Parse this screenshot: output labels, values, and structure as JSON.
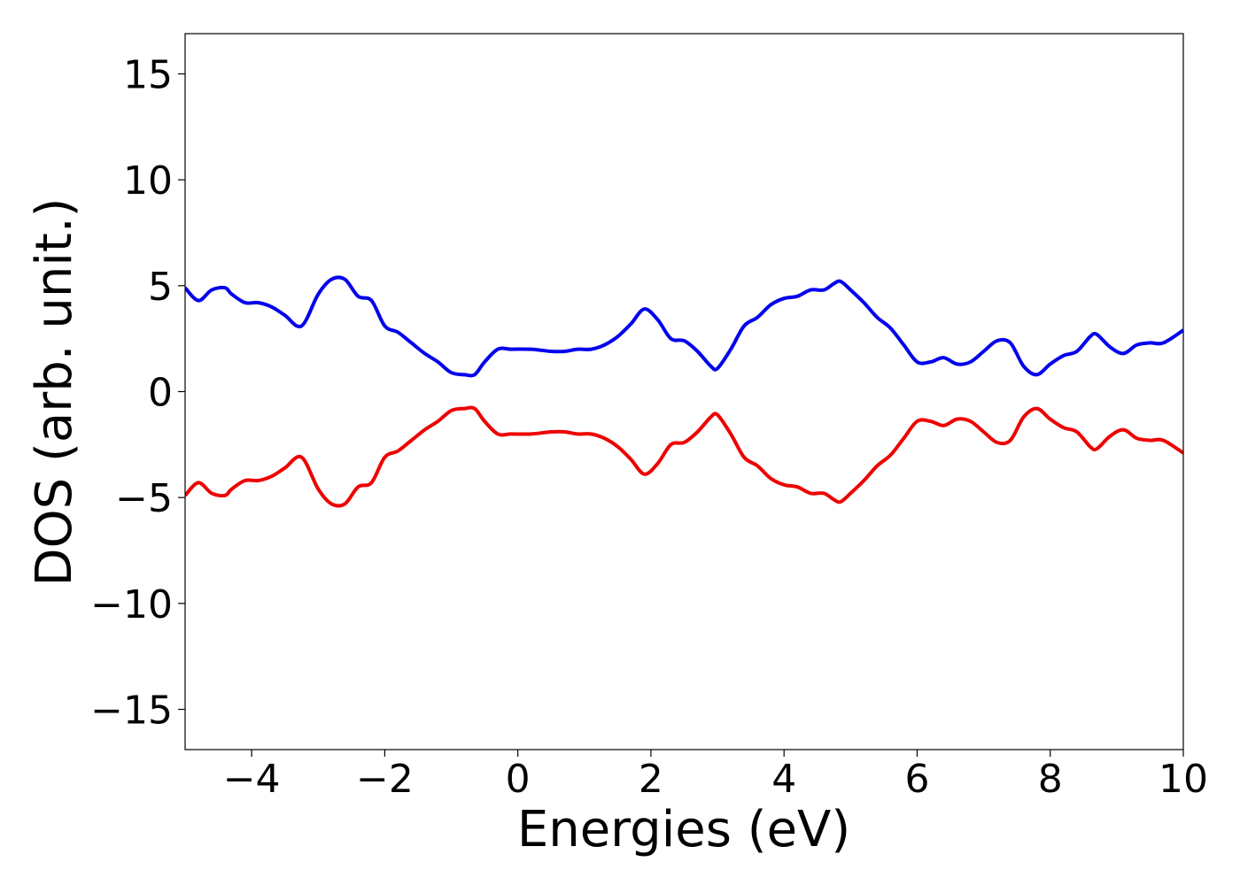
{
  "chart_data": {
    "type": "line",
    "title": "",
    "xlabel": "Energies (eV)",
    "ylabel": "DOS (arb. unit.)",
    "xlim": [
      -5,
      10
    ],
    "ylim": [
      -16.9,
      16.9
    ],
    "xticks": [
      -4,
      -2,
      0,
      2,
      4,
      6,
      8,
      10
    ],
    "xtick_labels": [
      "−4",
      "−2",
      "0",
      "2",
      "4",
      "6",
      "8",
      "10"
    ],
    "yticks": [
      -15,
      -10,
      -5,
      0,
      5,
      10,
      15
    ],
    "ytick_labels": [
      "−15",
      "−10",
      "−5",
      "0",
      "5",
      "10",
      "15"
    ],
    "grid": false,
    "legend": "none",
    "series": [
      {
        "color": "#0000ee",
        "x": [
          -5.0,
          -4.8,
          -4.6,
          -4.4,
          -4.3,
          -4.1,
          -3.9,
          -3.7,
          -3.5,
          -3.25,
          -3.0,
          -2.8,
          -2.6,
          -2.4,
          -2.2,
          -2.0,
          -1.8,
          -1.6,
          -1.4,
          -1.2,
          -1.0,
          -0.8,
          -0.65,
          -0.5,
          -0.3,
          -0.1,
          0.2,
          0.5,
          0.7,
          0.9,
          1.1,
          1.3,
          1.5,
          1.7,
          1.9,
          2.1,
          2.3,
          2.5,
          2.7,
          2.9,
          3.0,
          3.2,
          3.4,
          3.6,
          3.8,
          4.0,
          4.2,
          4.4,
          4.6,
          4.75,
          4.85,
          5.0,
          5.2,
          5.4,
          5.6,
          5.8,
          6.0,
          6.2,
          6.4,
          6.6,
          6.8,
          7.0,
          7.2,
          7.4,
          7.6,
          7.8,
          8.0,
          8.2,
          8.4,
          8.6,
          8.7,
          8.9,
          9.1,
          9.3,
          9.5,
          9.7,
          10.0
        ],
        "y": [
          4.9,
          4.3,
          4.8,
          4.9,
          4.6,
          4.2,
          4.2,
          4.0,
          3.6,
          3.1,
          4.6,
          5.3,
          5.3,
          4.5,
          4.3,
          3.1,
          2.8,
          2.3,
          1.8,
          1.4,
          0.9,
          0.8,
          0.8,
          1.4,
          2.0,
          2.0,
          2.0,
          1.9,
          1.9,
          2.0,
          2.0,
          2.2,
          2.6,
          3.2,
          3.9,
          3.4,
          2.5,
          2.4,
          1.9,
          1.2,
          1.1,
          2.0,
          3.1,
          3.5,
          4.1,
          4.4,
          4.5,
          4.8,
          4.8,
          5.1,
          5.2,
          4.8,
          4.2,
          3.5,
          3.0,
          2.2,
          1.4,
          1.4,
          1.6,
          1.3,
          1.4,
          1.9,
          2.4,
          2.3,
          1.2,
          0.8,
          1.3,
          1.7,
          1.9,
          2.6,
          2.7,
          2.1,
          1.8,
          2.2,
          2.3,
          2.3,
          2.9
        ]
      },
      {
        "color": "#ee0000",
        "x": [
          -5.0,
          -4.8,
          -4.6,
          -4.4,
          -4.3,
          -4.1,
          -3.9,
          -3.7,
          -3.5,
          -3.25,
          -3.0,
          -2.8,
          -2.6,
          -2.4,
          -2.2,
          -2.0,
          -1.8,
          -1.6,
          -1.4,
          -1.2,
          -1.0,
          -0.8,
          -0.65,
          -0.5,
          -0.3,
          -0.1,
          0.2,
          0.5,
          0.7,
          0.9,
          1.1,
          1.3,
          1.5,
          1.7,
          1.9,
          2.1,
          2.3,
          2.5,
          2.7,
          2.9,
          3.0,
          3.2,
          3.4,
          3.6,
          3.8,
          4.0,
          4.2,
          4.4,
          4.6,
          4.75,
          4.85,
          5.0,
          5.2,
          5.4,
          5.6,
          5.8,
          6.0,
          6.2,
          6.4,
          6.6,
          6.8,
          7.0,
          7.2,
          7.4,
          7.6,
          7.8,
          8.0,
          8.2,
          8.4,
          8.6,
          8.7,
          8.9,
          9.1,
          9.3,
          9.5,
          9.7,
          10.0
        ],
        "y": [
          -4.9,
          -4.3,
          -4.8,
          -4.9,
          -4.6,
          -4.2,
          -4.2,
          -4.0,
          -3.6,
          -3.1,
          -4.6,
          -5.3,
          -5.3,
          -4.5,
          -4.3,
          -3.1,
          -2.8,
          -2.3,
          -1.8,
          -1.4,
          -0.9,
          -0.8,
          -0.8,
          -1.4,
          -2.0,
          -2.0,
          -2.0,
          -1.9,
          -1.9,
          -2.0,
          -2.0,
          -2.2,
          -2.6,
          -3.2,
          -3.9,
          -3.4,
          -2.5,
          -2.4,
          -1.9,
          -1.2,
          -1.1,
          -2.0,
          -3.1,
          -3.5,
          -4.1,
          -4.4,
          -4.5,
          -4.8,
          -4.8,
          -5.1,
          -5.2,
          -4.8,
          -4.2,
          -3.5,
          -3.0,
          -2.2,
          -1.4,
          -1.4,
          -1.6,
          -1.3,
          -1.4,
          -1.9,
          -2.4,
          -2.3,
          -1.2,
          -0.8,
          -1.3,
          -1.7,
          -1.9,
          -2.6,
          -2.7,
          -2.1,
          -1.8,
          -2.2,
          -2.3,
          -2.3,
          -2.9
        ]
      }
    ]
  }
}
